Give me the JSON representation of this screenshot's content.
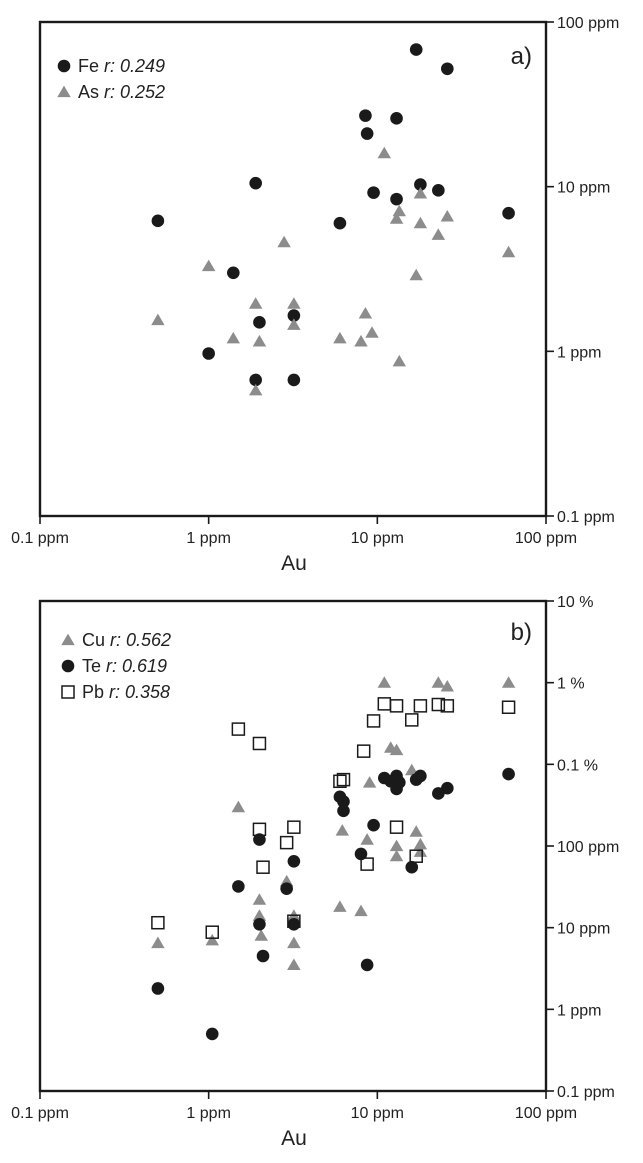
{
  "colors": {
    "frame": "#1a1a1a",
    "circle": "#1a1a1a",
    "triangle": "#8c8c8c",
    "triangle_dark": "#1a1a1a",
    "square_stroke": "#1a1a1a",
    "background": "#ffffff"
  },
  "chart_data": [
    {
      "type": "scatter",
      "panel_label": "a)",
      "xlabel": "Au",
      "ylabel": "",
      "xscale": "log",
      "yscale": "log",
      "xlim": [
        0.1,
        100
      ],
      "ylim": [
        0.1,
        100
      ],
      "grid": false,
      "legend_position": "top-left",
      "x_ticks": [
        {
          "value": 0.1,
          "label": "0.1 ppm"
        },
        {
          "value": 1,
          "label": "1 ppm"
        },
        {
          "value": 10,
          "label": "10 ppm"
        },
        {
          "value": 100,
          "label": "100 ppm"
        }
      ],
      "y_ticks": [
        {
          "value": 100,
          "label": "100 ppm"
        },
        {
          "value": 10,
          "label": "10 ppm"
        },
        {
          "value": 1,
          "label": "1 ppm"
        },
        {
          "value": 0.1,
          "label": "0.1 ppm"
        }
      ],
      "series": [
        {
          "name": "Fe",
          "r_label": "r:",
          "r_value": "0.249",
          "marker": "circle",
          "x": [
            0.5,
            1.0,
            1.4,
            1.9,
            1.9,
            2.0,
            3.2,
            3.2,
            6.0,
            8.5,
            8.7,
            9.5,
            13,
            13,
            17,
            18,
            23,
            26,
            60
          ],
          "y": [
            6.2,
            0.97,
            3.0,
            10.5,
            0.67,
            1.5,
            1.65,
            0.67,
            6.0,
            27,
            21,
            9.2,
            26,
            8.4,
            68,
            10.3,
            9.5,
            52,
            6.9
          ]
        },
        {
          "name": "As",
          "r_label": "r:",
          "r_value": "0.252",
          "marker": "triangle",
          "x": [
            0.5,
            1.0,
            1.4,
            1.9,
            1.9,
            2.0,
            2.8,
            3.2,
            3.2,
            6.0,
            8.0,
            8.5,
            9.3,
            11,
            13,
            13.5,
            13.5,
            17,
            18,
            18,
            23,
            26,
            60
          ],
          "y": [
            1.55,
            3.3,
            1.2,
            1.95,
            0.58,
            1.15,
            4.6,
            1.95,
            1.45,
            1.2,
            1.15,
            1.7,
            1.3,
            16,
            6.4,
            7.1,
            0.87,
            2.9,
            9.1,
            6.0,
            5.1,
            6.6,
            4.0
          ]
        }
      ]
    },
    {
      "type": "scatter",
      "panel_label": "b)",
      "xlabel": "Au",
      "ylabel": "",
      "xscale": "log",
      "yscale": "log",
      "xlim": [
        0.1,
        100
      ],
      "ylim": [
        0.1,
        100000
      ],
      "grid": false,
      "legend_position": "top-left",
      "x_ticks": [
        {
          "value": 0.1,
          "label": "0.1 ppm"
        },
        {
          "value": 1,
          "label": "1 ppm"
        },
        {
          "value": 10,
          "label": "10 ppm"
        },
        {
          "value": 100,
          "label": "100 ppm"
        }
      ],
      "y_ticks": [
        {
          "value": 100000,
          "label": "10 %"
        },
        {
          "value": 10000,
          "label": "1 %"
        },
        {
          "value": 1000,
          "label": "0.1 %"
        },
        {
          "value": 100,
          "label": "100 ppm"
        },
        {
          "value": 10,
          "label": "10 ppm"
        },
        {
          "value": 1,
          "label": "1 ppm"
        },
        {
          "value": 0.1,
          "label": "0.1 ppm"
        }
      ],
      "series": [
        {
          "name": "Cu",
          "r_label": "r:",
          "r_value": "0.562",
          "marker": "triangle",
          "x": [
            0.5,
            1.05,
            1.5,
            2.0,
            2.0,
            2.05,
            2.9,
            3.2,
            3.2,
            3.2,
            6.0,
            6.2,
            8.0,
            8.7,
            9.0,
            11,
            12,
            13,
            13,
            13,
            16,
            17,
            18,
            18,
            23,
            26,
            60
          ],
          "y": [
            6.5,
            7.0,
            300,
            22,
            14,
            8.0,
            37,
            14,
            6.5,
            3.5,
            18,
            155,
            16,
            120,
            600,
            10000,
            1600,
            100,
            75,
            1500,
            850,
            150,
            105,
            85,
            10000,
            9000,
            10000
          ]
        },
        {
          "name": "Te",
          "r_label": "r:",
          "r_value": "0.619",
          "marker": "circle",
          "x": [
            0.5,
            1.05,
            1.5,
            2.0,
            2.0,
            2.1,
            2.9,
            3.2,
            3.2,
            6.0,
            6.3,
            6.3,
            8.0,
            8.7,
            9.5,
            11,
            12,
            13,
            13,
            13.5,
            16,
            17,
            18,
            23,
            26,
            60
          ],
          "y": [
            1.8,
            0.5,
            32,
            120,
            11,
            4.5,
            30,
            65,
            11,
            400,
            270,
            350,
            80,
            3.5,
            180,
            680,
            620,
            720,
            500,
            600,
            55,
            650,
            720,
            440,
            510,
            760
          ]
        },
        {
          "name": "Pb",
          "r_label": "r:",
          "r_value": "0.358",
          "marker": "square",
          "x": [
            0.5,
            1.05,
            1.5,
            2.0,
            2.0,
            2.1,
            2.9,
            3.2,
            3.2,
            6.0,
            6.3,
            8.3,
            8.7,
            9.5,
            11,
            13,
            13,
            16,
            17,
            18,
            23,
            26,
            60
          ],
          "y": [
            11.5,
            8.8,
            2700,
            1800,
            160,
            55,
            110,
            170,
            12,
            620,
            650,
            1450,
            60,
            3400,
            5500,
            5200,
            170,
            3500,
            75,
            5200,
            5400,
            5200,
            5000
          ]
        }
      ]
    }
  ]
}
